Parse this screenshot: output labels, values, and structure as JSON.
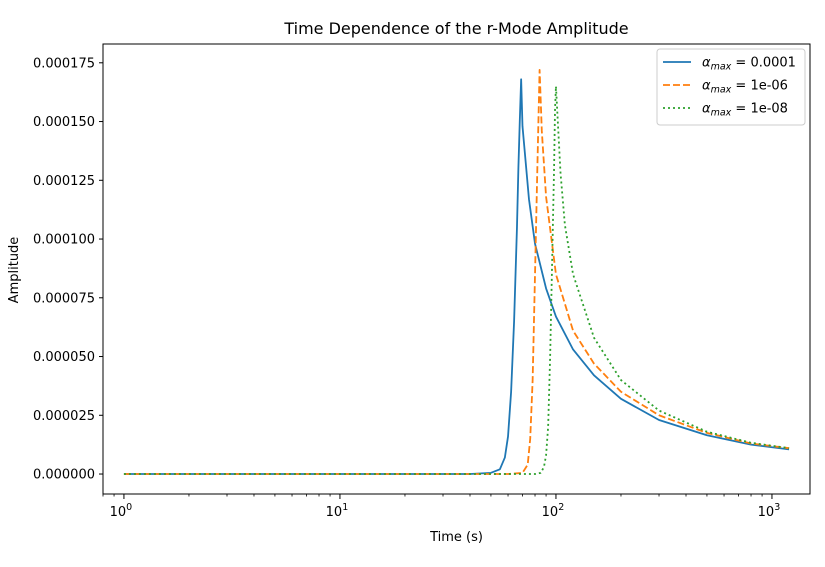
{
  "chart_data": {
    "type": "line",
    "title": "Time Dependence of the r-Mode Amplitude",
    "xlabel": "Time (s)",
    "ylabel": "Amplitude",
    "xscale": "log",
    "xlim": [
      0.8,
      1500
    ],
    "ylim": [
      -8.5e-06,
      0.000183
    ],
    "grid": false,
    "legend_position": "top-right",
    "yticks": [
      0,
      2.5e-05,
      5e-05,
      7.5e-05,
      0.0001,
      0.000125,
      0.00015,
      0.000175
    ],
    "ytick_labels": [
      "0.000000",
      "0.000025",
      "0.000050",
      "0.000075",
      "0.000100",
      "0.000125",
      "0.000150",
      "0.000175"
    ],
    "xticks": [
      {
        "value": 1,
        "base": "10",
        "exp": "0"
      },
      {
        "value": 10,
        "base": "10",
        "exp": "1"
      },
      {
        "value": 100,
        "base": "10",
        "exp": "2"
      },
      {
        "value": 1000,
        "base": "10",
        "exp": "3"
      }
    ],
    "series": [
      {
        "name": "α_max = 0.0001",
        "label_symbol": "α",
        "label_sub": "max",
        "label_eq": " = 0.0001",
        "color": "#1f77b4",
        "style": "solid",
        "x": [
          1,
          10,
          40,
          50,
          55,
          58,
          60,
          62,
          64,
          66,
          67,
          68,
          69,
          70,
          75,
          80,
          90,
          100,
          120,
          150,
          200,
          300,
          500,
          800,
          1200
        ],
        "y": [
          0,
          0,
          0,
          5e-07,
          2e-06,
          7e-06,
          1.6e-05,
          3.5e-05,
          6.5e-05,
          0.000105,
          0.00013,
          0.00015,
          0.000168,
          0.000148,
          0.000117,
          9.8e-05,
          7.9e-05,
          6.7e-05,
          5.3e-05,
          4.2e-05,
          3.2e-05,
          2.3e-05,
          1.65e-05,
          1.25e-05,
          1.05e-05
        ]
      },
      {
        "name": "α_max = 1e-06",
        "label_symbol": "α",
        "label_sub": "max",
        "label_eq": " = 1e-06",
        "color": "#ff7f0e",
        "style": "dashed",
        "x": [
          1,
          10,
          60,
          70,
          74,
          76,
          78,
          80,
          82,
          84,
          86,
          90,
          100,
          120,
          150,
          200,
          300,
          500,
          800,
          1200
        ],
        "y": [
          0,
          0,
          0,
          5e-07,
          4e-06,
          1.5e-05,
          4e-05,
          8.5e-05,
          0.00013,
          0.000172,
          0.000146,
          0.000118,
          8.5e-05,
          6.1e-05,
          4.7e-05,
          3.5e-05,
          2.5e-05,
          1.75e-05,
          1.3e-05,
          1.1e-05
        ]
      },
      {
        "name": "α_max = 1e-08",
        "label_symbol": "α",
        "label_sub": "max",
        "label_eq": " = 1e-08",
        "color": "#2ca02c",
        "style": "dotted",
        "x": [
          1,
          10,
          80,
          85,
          88,
          90,
          92,
          94,
          96,
          98,
          99,
          100,
          105,
          110,
          120,
          150,
          200,
          300,
          500,
          800,
          1200
        ],
        "y": [
          0,
          0,
          0,
          5e-07,
          3e-06,
          8e-06,
          2e-05,
          5e-05,
          9e-05,
          0.00013,
          0.000155,
          0.000165,
          0.000128,
          0.000106,
          8.5e-05,
          5.8e-05,
          4e-05,
          2.7e-05,
          1.8e-05,
          1.33e-05,
          1.1e-05
        ]
      }
    ]
  }
}
